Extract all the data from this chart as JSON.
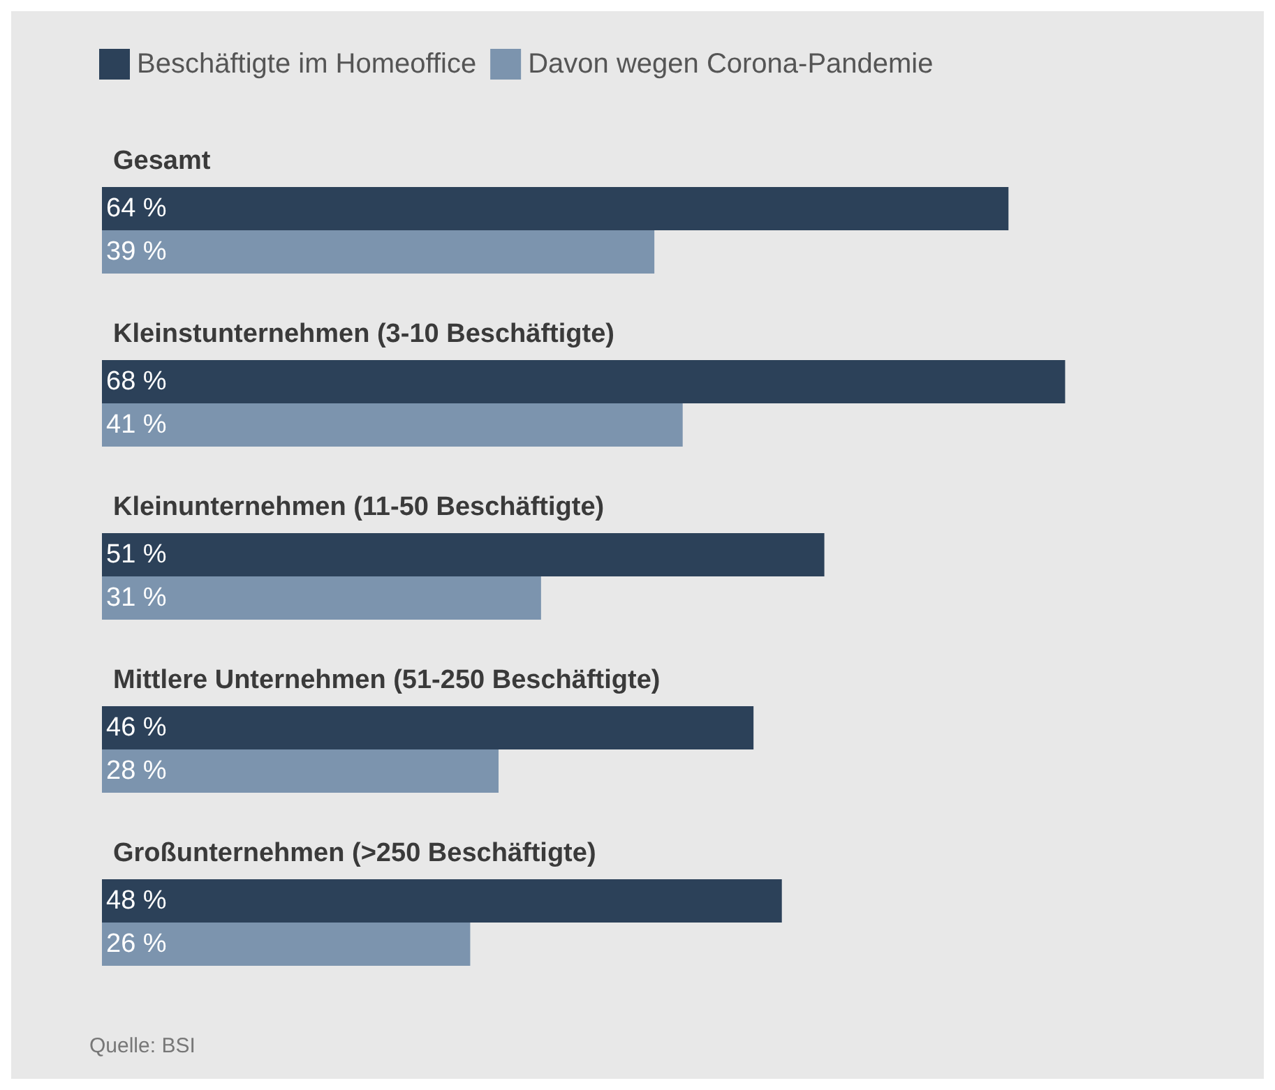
{
  "chart_data": {
    "type": "bar",
    "orientation": "horizontal",
    "categories": [
      "Gesamt",
      "Kleinstunternehmen (3-10 Beschäftigte)",
      "Kleinunternehmen (11-50 Beschäftigte)",
      "Mittlere Unternehmen (51-250 Beschäftigte)",
      "Großunternehmen (>250 Beschäftigte)"
    ],
    "series": [
      {
        "name": "Beschäftigte im Homeoffice",
        "color": "#2c4159",
        "values": [
          64,
          68,
          51,
          46,
          48
        ],
        "value_labels": [
          "64 %",
          "68 %",
          "51 %",
          "46 %",
          "48 %"
        ]
      },
      {
        "name": "Davon wegen Corona-Pandemie",
        "color": "#7c94ae",
        "values": [
          39,
          41,
          31,
          28,
          26
        ],
        "value_labels": [
          "39 %",
          "41 %",
          "31 %",
          "28 %",
          "26 %"
        ]
      }
    ],
    "legend": "top left",
    "grid": false,
    "annotations": [
      "Quelle: BSI"
    ]
  }
}
